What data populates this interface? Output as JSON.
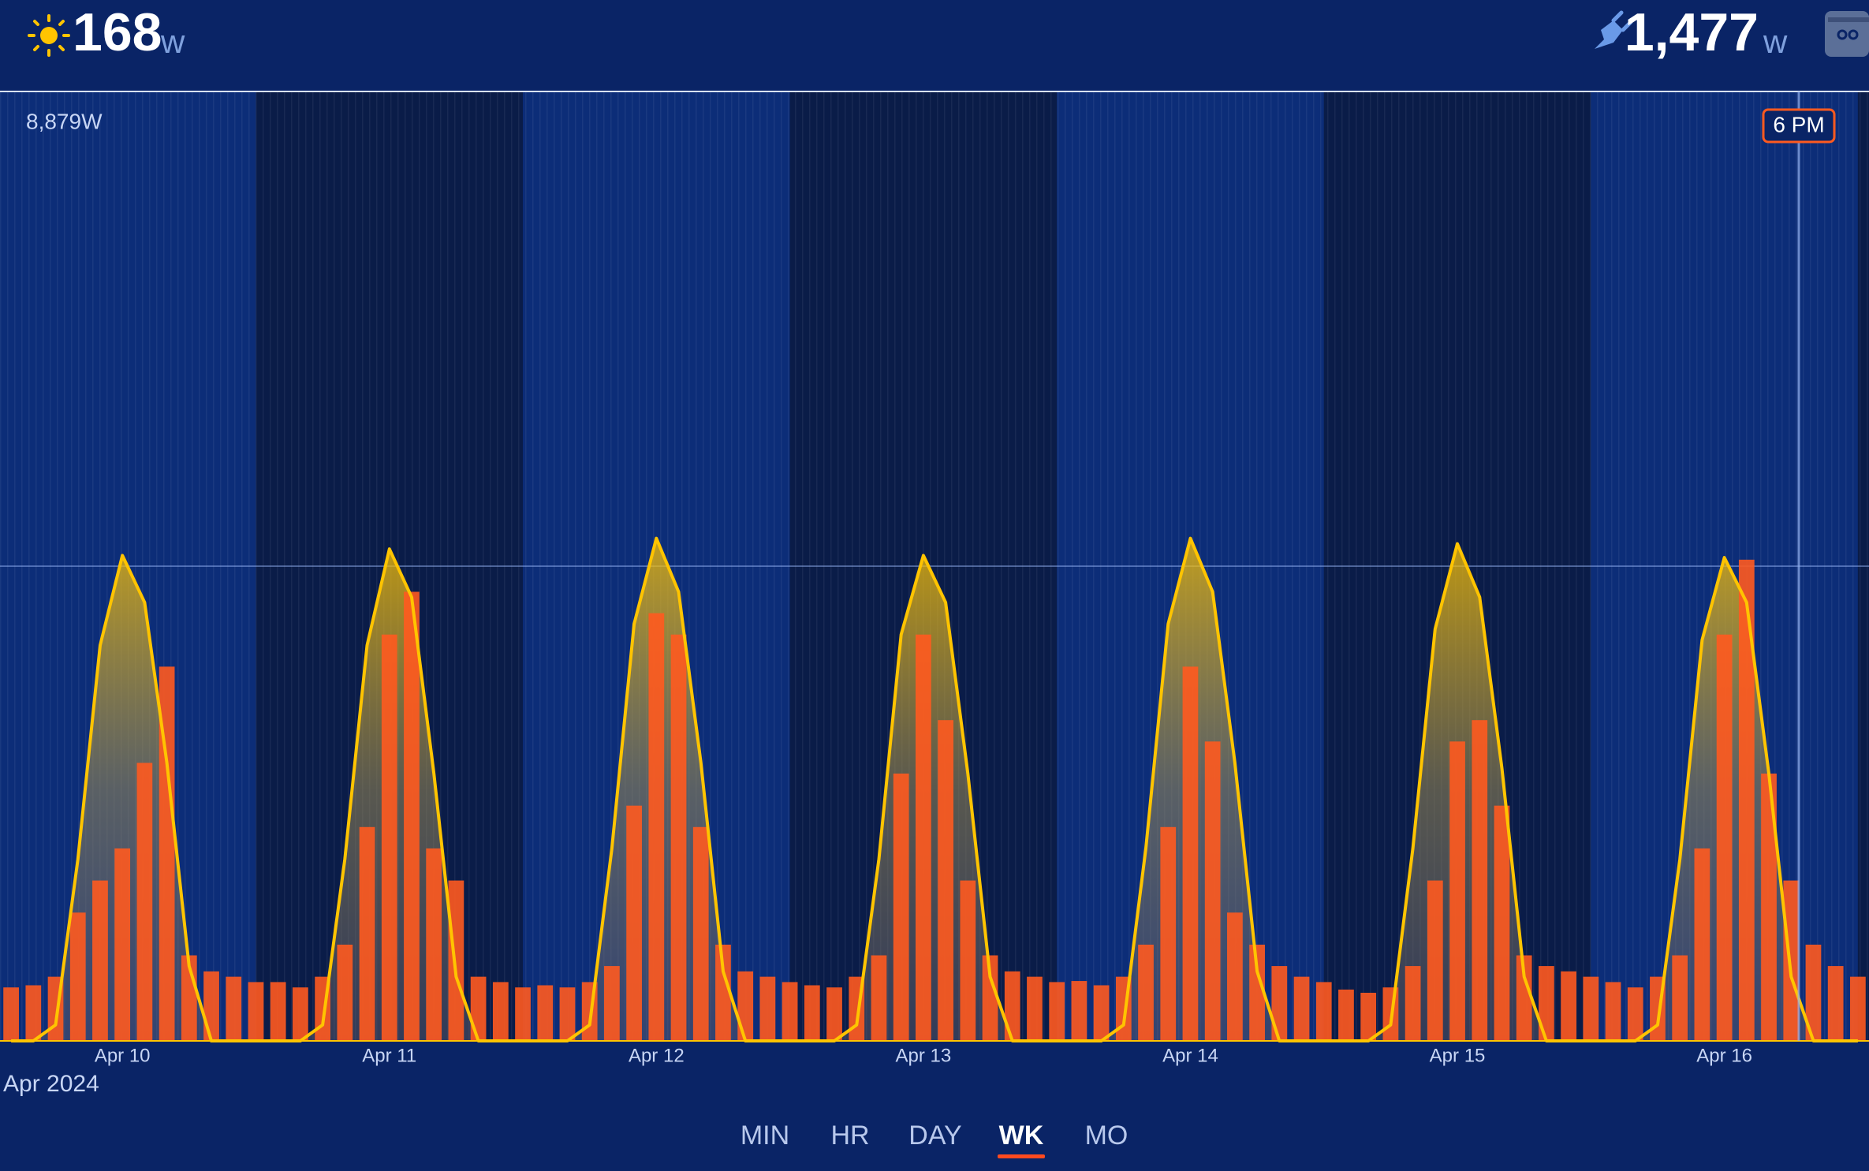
{
  "header": {
    "solar": "168",
    "solar_unit": "w",
    "consumption": "1,477",
    "consumption_unit": "w"
  },
  "chart_data": {
    "type": "bar-area",
    "x_label": "Apr 2024",
    "annotation": "6 PM",
    "categories": [
      null,
      null,
      null,
      null,
      null,
      "Apr 10",
      null,
      null,
      null,
      null,
      null,
      null,
      null,
      null,
      null,
      null,
      null,
      "Apr 11",
      null,
      null,
      null,
      null,
      null,
      null,
      null,
      null,
      null,
      null,
      null,
      "Apr 12",
      null,
      null,
      null,
      null,
      null,
      null,
      null,
      null,
      null,
      null,
      null,
      "Apr 13",
      null,
      null,
      null,
      null,
      null,
      null,
      null,
      null,
      null,
      null,
      null,
      "Apr 14",
      null,
      null,
      null,
      null,
      null,
      null,
      null,
      null,
      null,
      null,
      null,
      "Apr 15",
      null,
      null,
      null,
      null,
      null,
      null,
      null,
      null,
      null,
      null,
      null,
      "Apr 16",
      null,
      null,
      null,
      null,
      null,
      null
    ],
    "ylim": [
      0,
      8879
    ],
    "yticks": [
      {
        "value": 8879,
        "label": "8,879W"
      }
    ],
    "series": [
      {
        "name": "Solar",
        "color": "#ffc400",
        "kind": "area",
        "values": [
          0,
          0,
          150,
          1700,
          3700,
          4540,
          4100,
          2600,
          700,
          0,
          0,
          0,
          0,
          0,
          150,
          1700,
          3700,
          4600,
          4150,
          2500,
          600,
          0,
          0,
          0,
          0,
          0,
          150,
          1800,
          3900,
          4700,
          4200,
          2600,
          650,
          0,
          0,
          0,
          0,
          0,
          150,
          1700,
          3800,
          4540,
          4100,
          2500,
          600,
          0,
          0,
          0,
          0,
          0,
          150,
          1800,
          3900,
          4700,
          4200,
          2600,
          650,
          0,
          0,
          0,
          0,
          0,
          150,
          1800,
          3850,
          4650,
          4150,
          2550,
          600,
          0,
          0,
          0,
          0,
          0,
          150,
          1700,
          3750,
          4520,
          4100,
          2500,
          600,
          0,
          0,
          0
        ]
      },
      {
        "name": "Consumption",
        "color": "#ff5a1f",
        "kind": "bar",
        "values": [
          500,
          520,
          600,
          1200,
          1500,
          1800,
          2600,
          3500,
          800,
          650,
          600,
          550,
          550,
          500,
          600,
          900,
          2000,
          3800,
          4200,
          1800,
          1500,
          600,
          550,
          500,
          520,
          500,
          550,
          700,
          2200,
          4000,
          3800,
          2000,
          900,
          650,
          600,
          550,
          520,
          500,
          600,
          800,
          2500,
          3800,
          3000,
          1500,
          800,
          650,
          600,
          550,
          560,
          520,
          600,
          900,
          2000,
          3500,
          2800,
          1200,
          900,
          700,
          600,
          550,
          480,
          450,
          500,
          700,
          1500,
          2800,
          3000,
          2200,
          800,
          700,
          650,
          600,
          550,
          500,
          600,
          800,
          1800,
          3800,
          4500,
          2500,
          1500,
          900,
          700,
          600
        ]
      }
    ]
  },
  "tabs": [
    "MIN",
    "HR",
    "DAY",
    "WK",
    "MO"
  ],
  "selected_tab": "WK"
}
